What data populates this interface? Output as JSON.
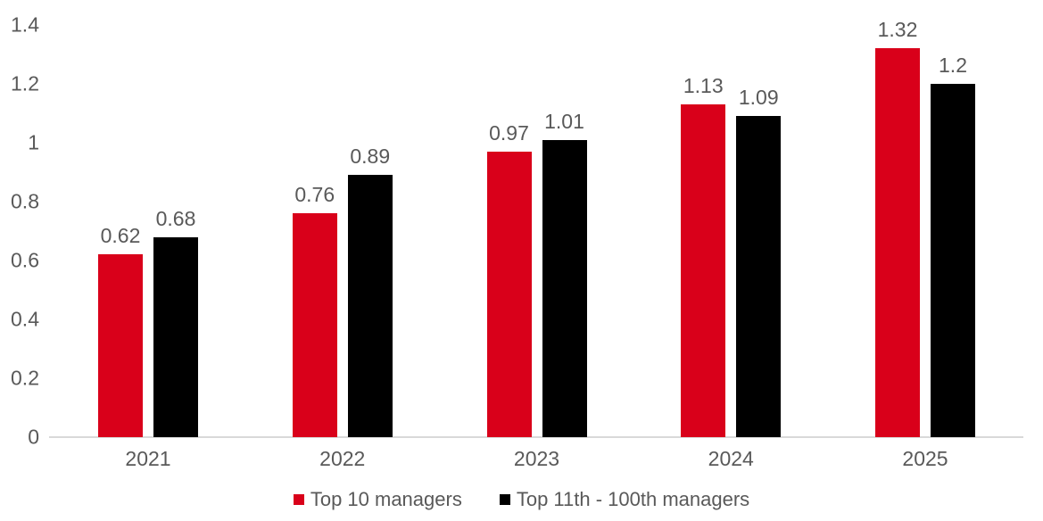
{
  "colors": {
    "background": "#ffffff",
    "axis_line": "#d9d9d9",
    "text": "#595959",
    "series_red": "#d9001a",
    "series_black": "#000000"
  },
  "chart_data": {
    "type": "bar",
    "categories": [
      "2021",
      "2022",
      "2023",
      "2024",
      "2025"
    ],
    "series": [
      {
        "name": "Top 10 managers",
        "color": "#d9001a",
        "values": [
          0.62,
          0.76,
          0.97,
          1.13,
          1.32
        ]
      },
      {
        "name": "Top 11th - 100th managers",
        "color": "#000000",
        "values": [
          0.68,
          0.89,
          1.01,
          1.09,
          1.2
        ]
      }
    ],
    "data_labels": [
      [
        "0.62",
        "0.76",
        "0.97",
        "1.13",
        "1.32"
      ],
      [
        "0.68",
        "0.89",
        "1.01",
        "1.09",
        "1.2"
      ]
    ],
    "title": "",
    "xlabel": "",
    "ylabel": "",
    "ylim": [
      0,
      1.4
    ],
    "yticks": [
      "0",
      "0.2",
      "0.4",
      "0.6",
      "0.8",
      "1",
      "1.2",
      "1.4"
    ],
    "grid": false,
    "legend_position": "bottom",
    "legend": [
      "Top 10 managers",
      "Top 11th - 100th managers"
    ]
  }
}
